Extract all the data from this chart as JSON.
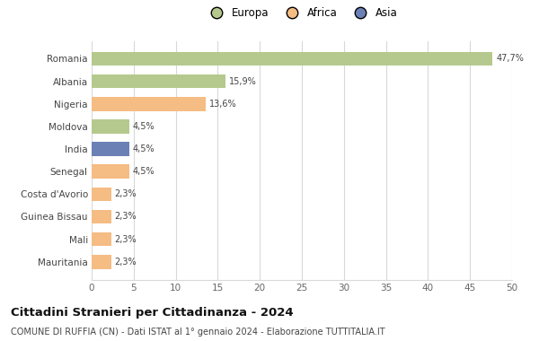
{
  "countries": [
    "Romania",
    "Albania",
    "Nigeria",
    "Moldova",
    "India",
    "Senegal",
    "Costa d'Avorio",
    "Guinea Bissau",
    "Mali",
    "Mauritania"
  ],
  "values": [
    47.7,
    15.9,
    13.6,
    4.5,
    4.5,
    4.5,
    2.3,
    2.3,
    2.3,
    2.3
  ],
  "labels": [
    "47,7%",
    "15,9%",
    "13,6%",
    "4,5%",
    "4,5%",
    "4,5%",
    "2,3%",
    "2,3%",
    "2,3%",
    "2,3%"
  ],
  "colors": [
    "#b5c98e",
    "#b5c98e",
    "#f5bc84",
    "#b5c98e",
    "#6b81b5",
    "#f5bc84",
    "#f5bc84",
    "#f5bc84",
    "#f5bc84",
    "#f5bc84"
  ],
  "legend_labels": [
    "Europa",
    "Africa",
    "Asia"
  ],
  "legend_colors": [
    "#b5c98e",
    "#f5bc84",
    "#6b81b5"
  ],
  "title": "Cittadini Stranieri per Cittadinanza - 2024",
  "subtitle": "COMUNE DI RUFFIA (CN) - Dati ISTAT al 1° gennaio 2024 - Elaborazione TUTTITALIA.IT",
  "xlim": [
    0,
    50
  ],
  "xticks": [
    0,
    5,
    10,
    15,
    20,
    25,
    30,
    35,
    40,
    45,
    50
  ],
  "bg_color": "#ffffff",
  "grid_color": "#d8d8d8"
}
